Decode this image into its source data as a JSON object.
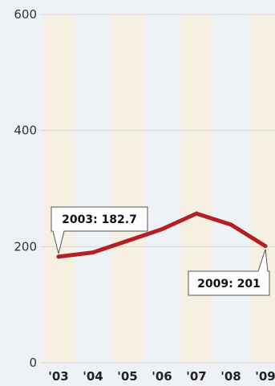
{
  "chart_data": {
    "type": "line",
    "x": [
      "'03",
      "'04",
      "'05",
      "'06",
      "'07",
      "'08",
      "'09"
    ],
    "y": [
      182.7,
      190,
      210,
      230,
      257,
      238,
      201
    ],
    "ylim": [
      0,
      600
    ],
    "yticks": [
      0,
      200,
      400,
      600
    ],
    "grid": true,
    "annotations": [
      {
        "text": "2003: 182.7",
        "index": 0
      },
      {
        "text": "2009: 201",
        "index": 6
      }
    ],
    "colors": {
      "line": "#b21f24",
      "band": "#f5f0e2",
      "background": "#eef1f6",
      "grid": "#d6d6d6"
    }
  }
}
